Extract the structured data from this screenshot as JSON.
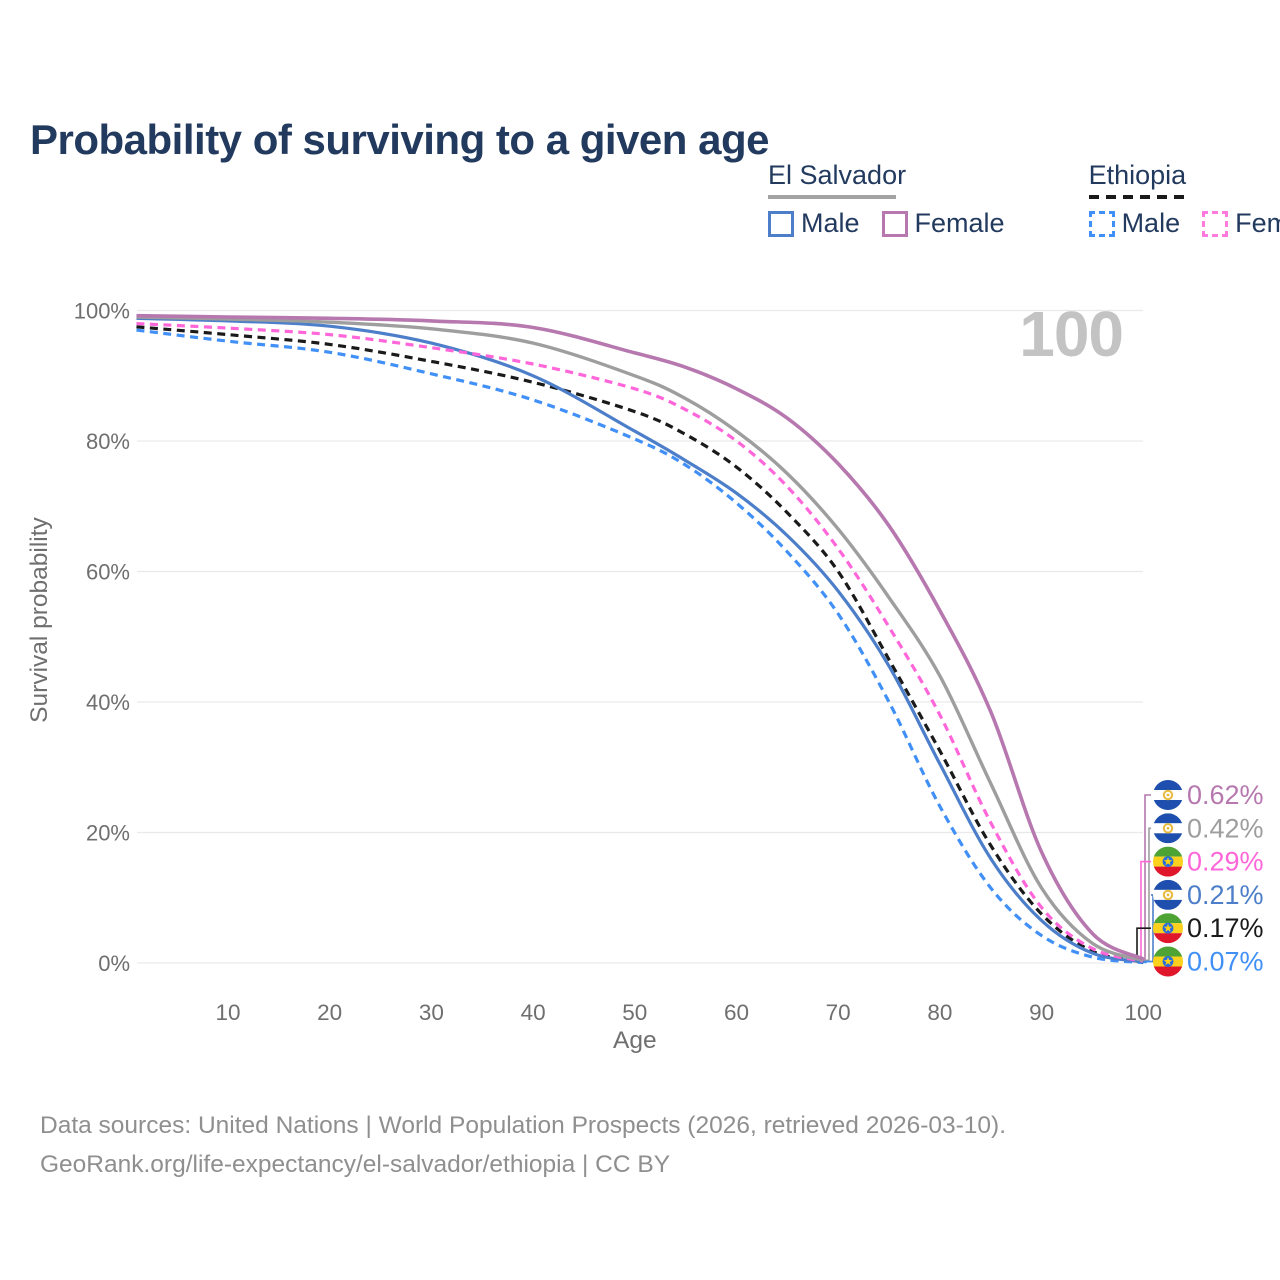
{
  "title": "Probability of surviving to a given age",
  "legend": {
    "groups": [
      {
        "label": "El Salvador",
        "rule_color": "#a3a3a3",
        "rule_style": "solid",
        "items": [
          {
            "label": "Male",
            "color": "#4d7ec9",
            "dashed": false
          },
          {
            "label": "Female",
            "color": "#b678ae",
            "dashed": false
          }
        ]
      },
      {
        "label": "Ethiopia",
        "rule_color": "#1a1a1a",
        "rule_style": "dashed",
        "items": [
          {
            "label": "Male",
            "color": "#4190f7",
            "dashed": true
          },
          {
            "label": "Female",
            "color": "#ff7ade",
            "dashed": true
          }
        ]
      }
    ]
  },
  "chart_data": {
    "type": "line",
    "title": "Probability of surviving to a given age",
    "xlabel": "Age",
    "ylabel": "Survival probability",
    "xlim": [
      0,
      100
    ],
    "ylim": [
      0,
      100
    ],
    "x_ticks": [
      10,
      20,
      30,
      40,
      50,
      60,
      70,
      80,
      90,
      100
    ],
    "y_ticks": [
      0,
      20,
      40,
      60,
      80,
      100
    ],
    "y_tick_suffix": "%",
    "grid": "horizontal",
    "legend_position": "top-right",
    "watermark": "100",
    "ages": [
      1,
      10,
      20,
      30,
      40,
      50,
      55,
      60,
      65,
      70,
      75,
      80,
      85,
      90,
      95,
      100
    ],
    "series": [
      {
        "name": "El Salvador Female",
        "country": "El Salvador",
        "sex": "Female",
        "color": "#b678ae",
        "dashed": false,
        "width": 3.6,
        "flag": "sv",
        "end_label": "0.62%",
        "values": [
          99.2,
          99.0,
          98.8,
          98.4,
          97.4,
          93.5,
          91.3,
          88.0,
          83.5,
          76.5,
          67.0,
          54.0,
          38.5,
          17.0,
          4.5,
          0.62
        ]
      },
      {
        "name": "El Salvador Both sexes",
        "country": "El Salvador",
        "sex": "Both",
        "color": "#9e9e9e",
        "dashed": false,
        "width": 3.4,
        "flag": "sv",
        "end_label": "0.42%",
        "values": [
          99.0,
          98.7,
          98.2,
          97.2,
          95.0,
          90.0,
          86.5,
          81.5,
          75.0,
          66.5,
          56.0,
          44.0,
          27.5,
          11.5,
          3.0,
          0.42
        ]
      },
      {
        "name": "Ethiopia Female",
        "country": "Ethiopia",
        "sex": "Female",
        "color": "#ff66d9",
        "dashed": true,
        "width": 3.2,
        "flag": "et",
        "end_label": "0.29%",
        "values": [
          98.0,
          97.3,
          96.3,
          94.3,
          91.8,
          88.0,
          84.8,
          80.0,
          73.0,
          63.5,
          51.5,
          38.0,
          21.5,
          8.5,
          2.2,
          0.29
        ]
      },
      {
        "name": "El Salvador Male",
        "country": "El Salvador",
        "sex": "Male",
        "color": "#4d7ec9",
        "dashed": false,
        "width": 3.2,
        "flag": "sv",
        "end_label": "0.21%",
        "values": [
          98.8,
          98.4,
          97.6,
          95.0,
          90.0,
          81.5,
          77.0,
          72.0,
          65.5,
          57.0,
          45.5,
          30.5,
          16.0,
          6.5,
          1.5,
          0.21
        ]
      },
      {
        "name": "Ethiopia Both sexes",
        "country": "Ethiopia",
        "sex": "Both",
        "color": "#1a1a1a",
        "dashed": true,
        "width": 3.2,
        "flag": "et",
        "end_label": "0.17%",
        "values": [
          97.5,
          96.3,
          94.8,
          92.2,
          89.0,
          84.5,
          81.0,
          76.0,
          69.0,
          60.0,
          46.5,
          32.5,
          18.0,
          7.5,
          1.8,
          0.17
        ]
      },
      {
        "name": "Ethiopia Male",
        "country": "Ethiopia",
        "sex": "Male",
        "color": "#4190f7",
        "dashed": true,
        "width": 3.2,
        "flag": "et",
        "end_label": "0.07%",
        "values": [
          97.0,
          95.3,
          93.6,
          90.3,
          86.3,
          80.3,
          76.3,
          70.5,
          63.0,
          53.5,
          40.0,
          24.0,
          11.5,
          4.2,
          0.9,
          0.07
        ]
      }
    ],
    "flag_colors": {
      "sv": {
        "band": "#1e4fae",
        "mid": "#ffffff",
        "emblem": "#e8b93c"
      },
      "et": {
        "top": "#4da333",
        "mid": "#fcd11d",
        "bottom": "#e0162b",
        "disc": "#2a6fdb",
        "star": "#fcd116"
      }
    }
  },
  "footer": {
    "line1": "Data sources: United Nations | World Population Prospects (2026, retrieved 2026-03-10).",
    "line2": "GeoRank.org/life-expectancy/el-salvador/ethiopia | CC BY"
  }
}
